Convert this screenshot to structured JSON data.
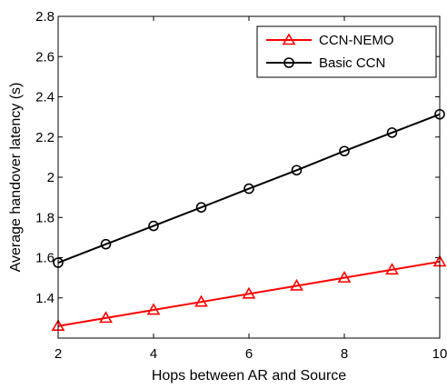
{
  "chart_data": {
    "type": "line",
    "title": "",
    "xlabel": "Hops between AR and Source",
    "ylabel": "Average handover latency (s)",
    "xlim": [
      2,
      10
    ],
    "ylim": [
      1.2,
      2.8
    ],
    "xticks": [
      2,
      4,
      6,
      8,
      10
    ],
    "yticks": [
      1.4,
      1.6,
      1.8,
      2.0,
      2.2,
      2.4,
      2.6,
      2.8
    ],
    "ytick_labels": [
      "1.4",
      "1.6",
      "1.8",
      "2",
      "2.2",
      "2.4",
      "2.6",
      "2.8"
    ],
    "grid": false,
    "legend_position": "top-right",
    "x": [
      2,
      3,
      4,
      5,
      6,
      7,
      8,
      9,
      10
    ],
    "series": [
      {
        "name": "CCN-NEMO",
        "color": "#ff0000",
        "marker": "triangle",
        "values": [
          1.26,
          1.3,
          1.34,
          1.38,
          1.42,
          1.46,
          1.5,
          1.54,
          1.58
        ]
      },
      {
        "name": "Basic CCN",
        "color": "#000000",
        "marker": "circle",
        "values": [
          1.575,
          1.667,
          1.758,
          1.85,
          1.943,
          2.035,
          2.13,
          2.222,
          2.313
        ]
      }
    ]
  }
}
